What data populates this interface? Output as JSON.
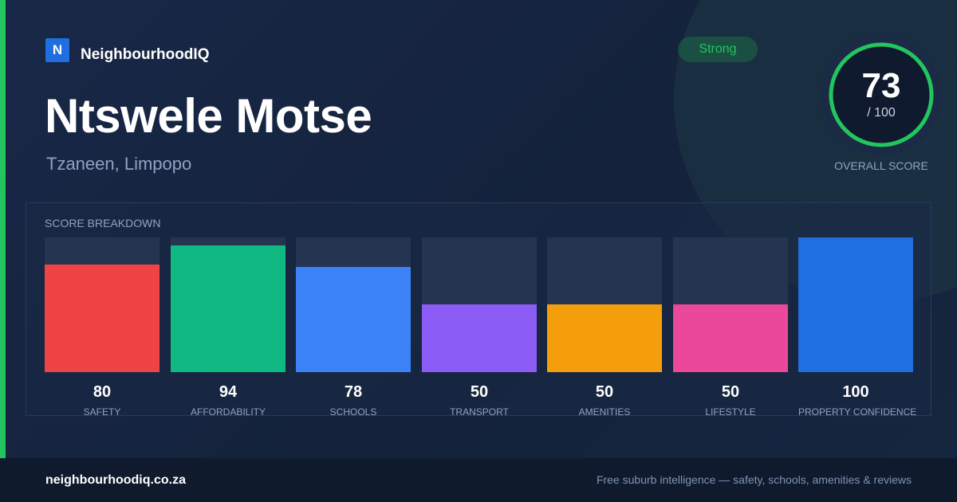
{
  "brand": {
    "logo_letter": "N",
    "name": "NeighbourhoodIQ",
    "logo_color": "#1f6fe0"
  },
  "suburb": {
    "name": "Ntswele Motse",
    "location": "Tzaneen, Limpopo"
  },
  "badge": {
    "label": "Strong",
    "color": "#22c55e"
  },
  "overall": {
    "score": "73",
    "max_label": "/ 100",
    "label": "OVERALL SCORE",
    "value": 73,
    "max": 100,
    "ring_color": "#22c55e"
  },
  "breakdown": {
    "title": "SCORE BREAKDOWN",
    "items": [
      {
        "label": "SAFETY",
        "value": 80,
        "display": "80",
        "color": "#ef4444"
      },
      {
        "label": "AFFORDABILITY",
        "value": 94,
        "display": "94",
        "color": "#10b981"
      },
      {
        "label": "SCHOOLS",
        "value": 78,
        "display": "78",
        "color": "#3b82f6"
      },
      {
        "label": "TRANSPORT",
        "value": 50,
        "display": "50",
        "color": "#8b5cf6"
      },
      {
        "label": "AMENITIES",
        "value": 50,
        "display": "50",
        "color": "#f59e0b"
      },
      {
        "label": "LIFESTYLE",
        "value": 50,
        "display": "50",
        "color": "#ec4899"
      },
      {
        "label": "PROPERTY CONFIDENCE",
        "value": 100,
        "display": "100",
        "color": "#1f6fe0"
      }
    ]
  },
  "footer": {
    "domain": "neighbourhoodiq.co.za",
    "tagline": "Free suburb intelligence — safety, schools, amenities & reviews"
  }
}
